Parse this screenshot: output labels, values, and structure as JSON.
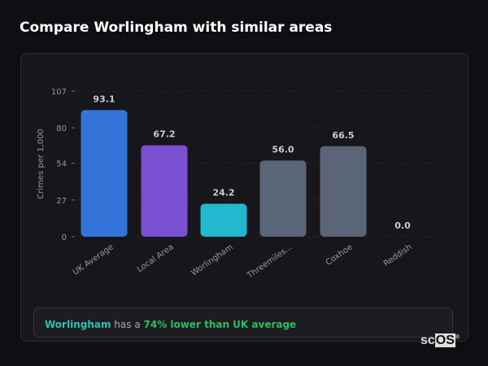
{
  "title": "Compare Worlingham with similar areas",
  "summary": {
    "place": "Worlingham",
    "middle": " has a ",
    "highlight": "74% lower than UK average"
  },
  "logo": {
    "text": "scOS"
  },
  "chart_data": {
    "type": "bar",
    "title": "",
    "xlabel": "",
    "ylabel": "Crimes per 1,000",
    "ylim": [
      0,
      107
    ],
    "yticks": [
      0,
      27,
      54,
      80,
      107
    ],
    "categories": [
      "UK Average",
      "Local Area",
      "Worlingham",
      "Threemiles...",
      "Coxhoe",
      "Reddish"
    ],
    "values": [
      93.1,
      67.2,
      24.2,
      56.0,
      66.5,
      0.0
    ],
    "value_labels": [
      "93.1",
      "67.2",
      "24.2",
      "56.0",
      "66.5",
      "0.0"
    ],
    "colors": [
      "#3474d8",
      "#7b4fd1",
      "#22b8d0",
      "#5a6578",
      "#5a6578",
      "#5a6578"
    ],
    "grid": true
  }
}
